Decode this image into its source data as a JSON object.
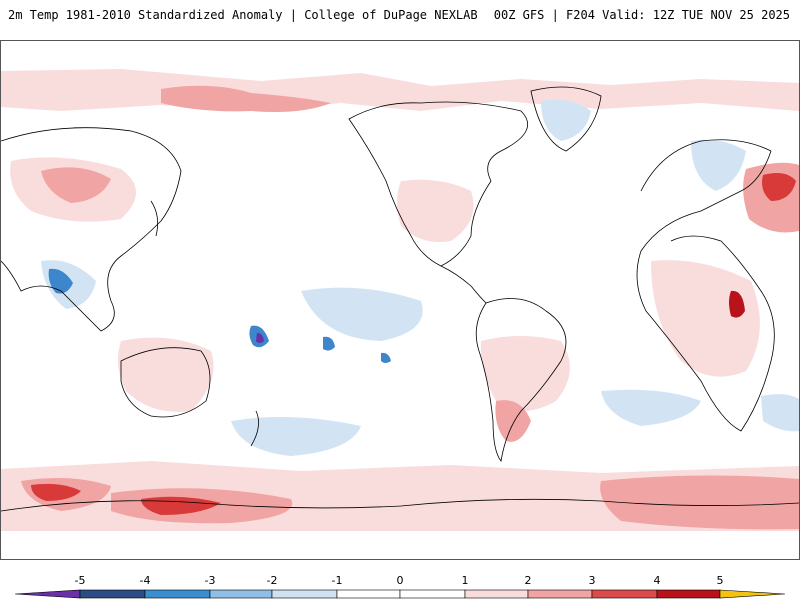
{
  "header": {
    "left_title": "2m Temp 1981-2010 Standardized Anomaly | College of DuPage NEXLAB",
    "right_title": "00Z GFS | F204 Valid: 12Z TUE NOV 25 2025"
  },
  "legend": {
    "ticks": [
      "-5",
      "-4",
      "-3",
      "-2",
      "-1",
      "0",
      "1",
      "2",
      "3",
      "4",
      "5"
    ],
    "colors": {
      "neg5": "#6b2fa8",
      "neg4": "#2b4d86",
      "neg3": "#3b8fd0",
      "neg2": "#8fbfe6",
      "neg1": "#cfe2f3",
      "zero_neg": "#ffffff",
      "zero_pos": "#ffffff",
      "pos1": "#f9dcdc",
      "pos2": "#f0a4a4",
      "pos3": "#dd4a4a",
      "pos4": "#b8121b",
      "pos5": "#6f0a0a",
      "extreme": "#f2c40f"
    }
  },
  "map": {
    "land_outline_color": "#000000",
    "warm_anomaly_color": "#f4c6c6",
    "strong_warm_color": "#d83a3a",
    "cool_anomaly_color": "#d2e4f4",
    "strong_cool_color": "#3d86cc"
  }
}
